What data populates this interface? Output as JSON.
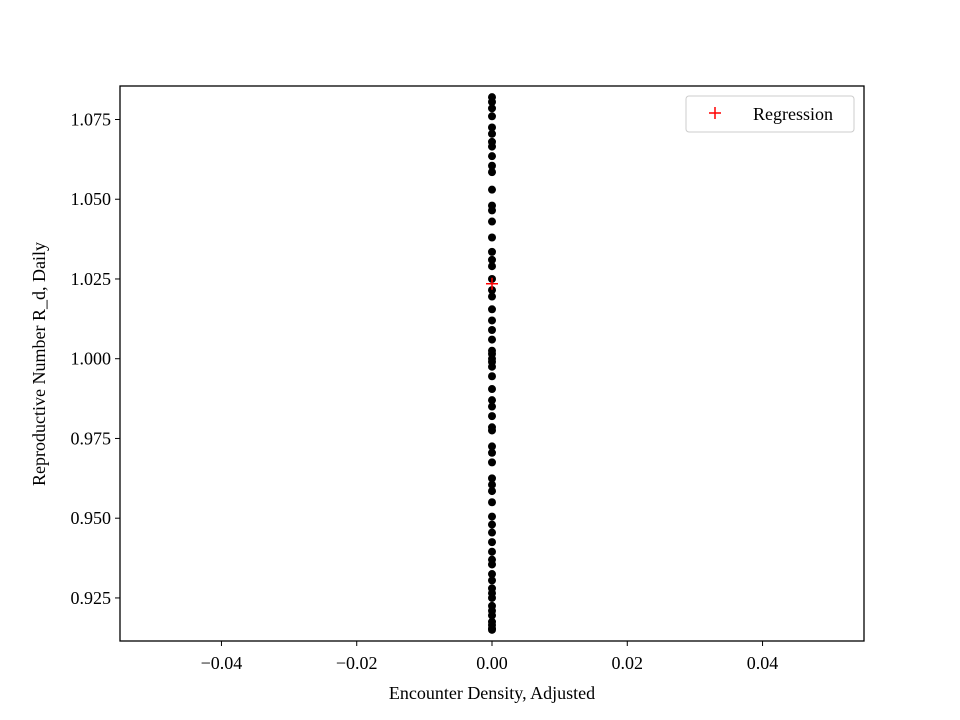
{
  "chart_data": {
    "type": "scatter",
    "title": "",
    "xlabel": "Encounter Density, Adjusted",
    "ylabel": "Reproductive Number R_d, Daily",
    "xlim": [
      -0.055,
      0.055
    ],
    "ylim": [
      0.9115,
      1.0855
    ],
    "xticks": [
      -0.04,
      -0.02,
      0.0,
      0.02,
      0.04
    ],
    "xtick_labels": [
      "−0.04",
      "−0.02",
      "0.00",
      "0.02",
      "0.04"
    ],
    "yticks": [
      0.925,
      0.95,
      0.975,
      1.0,
      1.025,
      1.05,
      1.075
    ],
    "ytick_labels": [
      "0.925",
      "0.950",
      "0.975",
      "1.000",
      "1.025",
      "1.050",
      "1.075"
    ],
    "grid": false,
    "legend_position": "upper right",
    "series": [
      {
        "name": "",
        "marker": "circle",
        "color": "#000000",
        "x": [
          0,
          0,
          0,
          0,
          0,
          0,
          0,
          0,
          0,
          0,
          0,
          0,
          0,
          0,
          0,
          0,
          0,
          0,
          0,
          0,
          0,
          0,
          0,
          0,
          0,
          0,
          0,
          0,
          0,
          0,
          0,
          0,
          0,
          0,
          0,
          0,
          0,
          0,
          0,
          0,
          0,
          0,
          0,
          0,
          0,
          0,
          0,
          0,
          0,
          0,
          0,
          0,
          0,
          0,
          0,
          0,
          0,
          0,
          0,
          0,
          0,
          0,
          0,
          0
        ],
        "y": [
          1.082,
          1.0805,
          1.0785,
          1.076,
          1.0725,
          1.0705,
          1.068,
          1.0665,
          1.0635,
          1.0605,
          1.0585,
          1.053,
          1.048,
          1.0465,
          1.043,
          1.038,
          1.0335,
          1.031,
          1.029,
          1.025,
          1.0215,
          1.0195,
          1.0155,
          1.012,
          1.009,
          1.006,
          1.0025,
          1.0015,
          1.0,
          0.999,
          0.9975,
          0.9945,
          0.9905,
          0.987,
          0.985,
          0.982,
          0.9785,
          0.9775,
          0.9725,
          0.9705,
          0.9675,
          0.9625,
          0.9605,
          0.9585,
          0.955,
          0.9505,
          0.948,
          0.9455,
          0.9425,
          0.9395,
          0.937,
          0.9355,
          0.9325,
          0.9305,
          0.928,
          0.9265,
          0.925,
          0.9225,
          0.921,
          0.9195,
          0.9175,
          0.9165,
          0.9155,
          0.915
        ]
      },
      {
        "name": "Regression",
        "marker": "plus",
        "color": "#ff0000",
        "x": [
          0.0
        ],
        "y": [
          1.0235
        ]
      }
    ]
  }
}
